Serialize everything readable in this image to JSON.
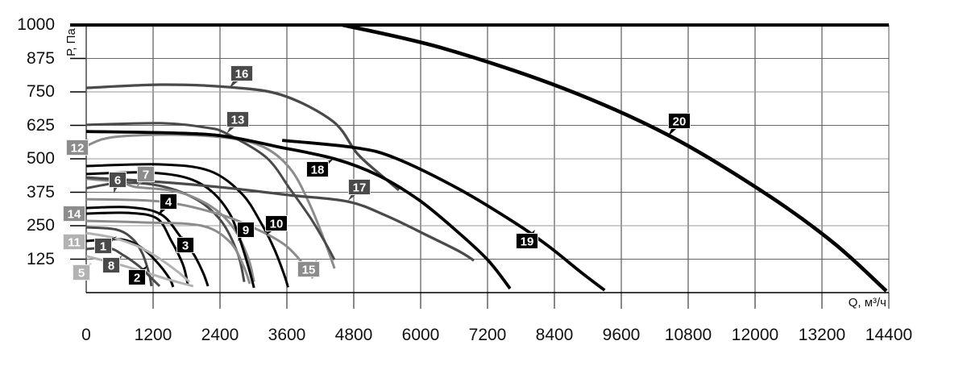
{
  "chart_data": {
    "type": "line",
    "title": "",
    "xlabel": "Q, м³/ч",
    "ylabel": "Р, Па",
    "xlim": [
      0,
      14400
    ],
    "ylim": [
      0,
      1000
    ],
    "grid": true,
    "legend_position": "inline-flags",
    "x_ticks": [
      0,
      1200,
      2400,
      3600,
      4800,
      6000,
      7200,
      8400,
      9600,
      10800,
      12000,
      13200,
      14400
    ],
    "y_ticks": [
      125,
      250,
      375,
      500,
      625,
      750,
      875,
      1000
    ],
    "series": [
      {
        "name": "1",
        "color": "dark",
        "width": 3,
        "points": [
          [
            0,
            244
          ],
          [
            550,
            235
          ],
          [
            840,
            199
          ],
          [
            1010,
            145
          ],
          [
            1130,
            69
          ],
          [
            1170,
            24
          ]
        ],
        "label": {
          "cx": 128,
          "cy": 305,
          "ax": 145,
          "ay": 293
        }
      },
      {
        "name": "2",
        "color": "black",
        "width": 3,
        "points": [
          [
            0,
            193
          ],
          [
            620,
            199
          ],
          [
            985,
            169
          ],
          [
            1270,
            114
          ],
          [
            1490,
            54
          ],
          [
            1560,
            21
          ]
        ],
        "label": {
          "cx": 170,
          "cy": 344,
          "ax": 183,
          "ay": 329
        }
      },
      {
        "name": "3",
        "color": "black",
        "width": 3,
        "points": [
          [
            0,
            295
          ],
          [
            765,
            298
          ],
          [
            1270,
            277
          ],
          [
            1520,
            196
          ],
          [
            1735,
            105
          ],
          [
            1820,
            33
          ]
        ],
        "label": {
          "cx": 230,
          "cy": 304,
          "ax": 226,
          "ay": 293
        }
      },
      {
        "name": "4",
        "color": "black",
        "width": 3,
        "points": [
          [
            0,
            316
          ],
          [
            765,
            319
          ],
          [
            1345,
            292
          ],
          [
            1705,
            205
          ],
          [
            1925,
            145
          ],
          [
            2095,
            75
          ],
          [
            2185,
            24
          ]
        ],
        "label": {
          "cx": 209,
          "cy": 250,
          "ax": 196,
          "ay": 268
        }
      },
      {
        "name": "5",
        "color": "light",
        "width": 3,
        "points": [
          [
            0,
            136
          ],
          [
            480,
            111
          ],
          [
            985,
            81
          ],
          [
            1490,
            48
          ],
          [
            1920,
            24
          ]
        ],
        "label": {
          "cx": 101,
          "cy": 338,
          "ax": 114,
          "ay": 326
        }
      },
      {
        "name": "6",
        "color": "dark",
        "width": 3,
        "points": [
          [
            0,
            390
          ],
          [
            620,
            410
          ],
          [
            1345,
            398
          ],
          [
            1995,
            346
          ],
          [
            2430,
            265
          ],
          [
            2720,
            145
          ],
          [
            2835,
            40
          ]
        ],
        "label": {
          "cx": 146,
          "cy": 223,
          "ax": 141,
          "ay": 240
        }
      },
      {
        "name": "7",
        "color": "mid",
        "width": 3,
        "points": [
          [
            0,
            425
          ],
          [
            620,
            413
          ],
          [
            880,
            395
          ],
          [
            1635,
            377
          ],
          [
            2240,
            322
          ],
          [
            2645,
            241
          ],
          [
            2905,
            130
          ],
          [
            3010,
            40
          ]
        ],
        "label": {
          "cx": 181,
          "cy": 216,
          "ax": 169,
          "ay": 233
        }
      },
      {
        "name": "8",
        "color": "dark",
        "width": 3,
        "points": [
          [
            0,
            163
          ],
          [
            405,
            166
          ],
          [
            650,
            142
          ],
          [
            940,
            100
          ],
          [
            1200,
            48
          ],
          [
            1316,
            24
          ]
        ],
        "label": {
          "cx": 138,
          "cy": 329,
          "ax": 152,
          "ay": 317
        }
      },
      {
        "name": "9",
        "color": "black",
        "width": 3,
        "points": [
          [
            0,
            443
          ],
          [
            1055,
            449
          ],
          [
            1780,
            430
          ],
          [
            2240,
            380
          ],
          [
            2575,
            295
          ],
          [
            2745,
            205
          ],
          [
            2905,
            100
          ],
          [
            3010,
            18
          ]
        ],
        "label": {
          "cx": 305,
          "cy": 285,
          "ax": 295,
          "ay": 299
        }
      },
      {
        "name": "10",
        "color": "black",
        "width": 3,
        "points": [
          [
            0,
            473
          ],
          [
            1345,
            479
          ],
          [
            2210,
            455
          ],
          [
            2790,
            370
          ],
          [
            3150,
            255
          ],
          [
            3380,
            160
          ],
          [
            3560,
            62
          ],
          [
            3620,
            20
          ]
        ],
        "label": {
          "cx": 343,
          "cy": 277,
          "ax": 330,
          "ay": 292
        }
      },
      {
        "name": "11",
        "color": "light",
        "width": 3,
        "points": [
          [
            0,
            223
          ],
          [
            480,
            205
          ],
          [
            940,
            172
          ],
          [
            1345,
            123
          ],
          [
            1660,
            75
          ],
          [
            1850,
            40
          ]
        ],
        "label": {
          "cx": 92,
          "cy": 300,
          "ax": 108,
          "ay": 289
        }
      },
      {
        "name": "12",
        "color": "mid",
        "width": 3,
        "points": [
          [
            0,
            548
          ],
          [
            480,
            581
          ],
          [
            1635,
            590
          ],
          [
            2645,
            575
          ],
          [
            3255,
            536
          ],
          [
            3690,
            455
          ],
          [
            4020,
            325
          ],
          [
            4310,
            175
          ],
          [
            4455,
            90
          ]
        ],
        "label": {
          "cx": 96,
          "cy": 183,
          "ax": 110,
          "ay": 172
        }
      },
      {
        "name": "13",
        "color": "dark",
        "width": 3,
        "points": [
          [
            0,
            627
          ],
          [
            1345,
            633
          ],
          [
            2140,
            617
          ],
          [
            2500,
            596
          ],
          [
            3225,
            506
          ],
          [
            3660,
            386
          ],
          [
            4020,
            280
          ],
          [
            4280,
            190
          ],
          [
            4455,
            123
          ]
        ],
        "label": {
          "cx": 295,
          "cy": 148,
          "ax": 281,
          "ay": 166
        }
      },
      {
        "name": "14",
        "color": "mid",
        "width": 3,
        "points": [
          [
            0,
            268
          ],
          [
            1055,
            262
          ],
          [
            2070,
            250
          ],
          [
            2575,
            190
          ],
          [
            2820,
            100
          ],
          [
            2935,
            33
          ]
        ],
        "label": {
          "cx": 92,
          "cy": 265,
          "ax": 108,
          "ay": 274
        }
      },
      {
        "name": "15",
        "color": "mid",
        "width": 3,
        "points": [
          [
            0,
            349
          ],
          [
            1345,
            340
          ],
          [
            2355,
            295
          ],
          [
            3080,
            235
          ],
          [
            3585,
            175
          ],
          [
            3920,
            100
          ],
          [
            4065,
            54
          ]
        ],
        "label": {
          "cx": 383,
          "cy": 334,
          "ax": 394,
          "ay": 322
        }
      },
      {
        "name": "16",
        "color": "dark",
        "width": 3.3,
        "points": [
          [
            0,
            765
          ],
          [
            1345,
            777
          ],
          [
            2545,
            768
          ],
          [
            3515,
            738
          ],
          [
            4425,
            640
          ],
          [
            4860,
            520
          ],
          [
            5250,
            446
          ],
          [
            5610,
            383
          ]
        ],
        "label": {
          "cx": 300,
          "cy": 91,
          "ax": 284,
          "ay": 110
        }
      },
      {
        "name": "17",
        "color": "dark",
        "width": 3.3,
        "points": [
          [
            0,
            430
          ],
          [
            1345,
            413
          ],
          [
            2500,
            392
          ],
          [
            3660,
            364
          ],
          [
            4700,
            340
          ],
          [
            5395,
            286
          ],
          [
            6115,
            214
          ],
          [
            6695,
            154
          ],
          [
            6955,
            120
          ]
        ],
        "label": {
          "cx": 446,
          "cy": 232,
          "ax": 432,
          "ay": 249
        }
      },
      {
        "name": "18",
        "color": "black",
        "width": 3.8,
        "points": [
          [
            0,
            602
          ],
          [
            1635,
            596
          ],
          [
            2500,
            584
          ],
          [
            3440,
            545
          ],
          [
            4455,
            500
          ],
          [
            5250,
            437
          ],
          [
            5970,
            346
          ],
          [
            6620,
            235
          ],
          [
            7200,
            123
          ],
          [
            7605,
            15
          ]
        ],
        "label": {
          "cx": 394,
          "cy": 210,
          "ax": 414,
          "ay": 197
        }
      },
      {
        "name": "19",
        "color": "black",
        "width": 3.8,
        "points": [
          [
            3515,
            569
          ],
          [
            4815,
            542
          ],
          [
            5540,
            503
          ],
          [
            6695,
            386
          ],
          [
            7705,
            259
          ],
          [
            8285,
            175
          ],
          [
            8865,
            78
          ],
          [
            9300,
            9
          ]
        ],
        "label": {
          "cx": 654,
          "cy": 299,
          "ax": 664,
          "ay": 285
        }
      },
      {
        "name": "20",
        "color": "black",
        "width": 4.6,
        "points": [
          [
            4600,
            1000
          ],
          [
            6405,
            913
          ],
          [
            8575,
            762
          ],
          [
            10455,
            587
          ],
          [
            12190,
            370
          ],
          [
            13420,
            184
          ],
          [
            14355,
            6
          ]
        ],
        "label": {
          "cx": 843,
          "cy": 150,
          "ax": 829,
          "ay": 169
        }
      }
    ]
  },
  "colors": {
    "black": "#000000",
    "dark": "#4a4a4a",
    "mid": "#8c8c8c",
    "light": "#b2b2b2",
    "grid_vertical": "#3a3a3a",
    "grid_horizontal_major": "#666666",
    "grid_horizontal_minor": "#9a9a9a",
    "frame": "#000000",
    "tick_text": "#111111",
    "flag_text": "#ffffff"
  }
}
